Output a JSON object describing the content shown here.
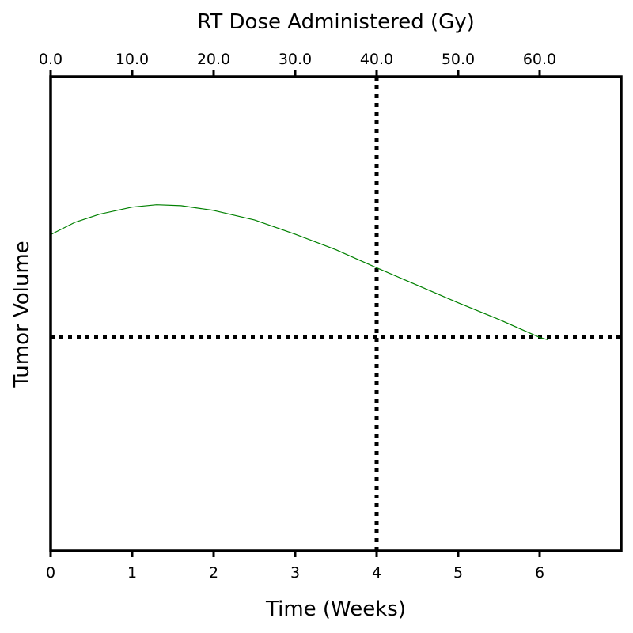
{
  "chart_data": {
    "type": "line",
    "title": "",
    "xlabel": "Time (Weeks)",
    "ylabel": "Tumor Volume",
    "x2label": "RT Dose Administered (Gy)",
    "xlim": [
      0,
      7
    ],
    "ylim": [
      0,
      1
    ],
    "x_ticks": [
      0,
      1,
      2,
      3,
      4,
      5,
      6
    ],
    "x_tick_labels": [
      "0",
      "1",
      "2",
      "3",
      "4",
      "5",
      "6"
    ],
    "x2_ticks": [
      0,
      10,
      20,
      30,
      40,
      50,
      60
    ],
    "x2_tick_labels": [
      "0.0",
      "10.0",
      "20.0",
      "30.0",
      "40.0",
      "50.0",
      "60.0"
    ],
    "y_ticks_shown": false,
    "grid": false,
    "legend": "none",
    "series": [
      {
        "color": "#008000",
        "x": [
          0,
          0.3,
          0.6,
          1.0,
          1.3,
          1.6,
          2.0,
          2.5,
          3.0,
          3.5,
          4.0,
          4.5,
          5.0,
          5.5,
          6.0,
          6.1
        ],
        "y": [
          0.667,
          0.693,
          0.71,
          0.725,
          0.73,
          0.728,
          0.718,
          0.698,
          0.668,
          0.635,
          0.597,
          0.56,
          0.523,
          0.488,
          0.45,
          0.445
        ]
      }
    ],
    "reference_lines": [
      {
        "orientation": "vertical",
        "x": 4,
        "style": "dotted",
        "color": "#000000"
      },
      {
        "orientation": "horizontal",
        "y": 0.45,
        "style": "dotted",
        "color": "#000000"
      }
    ]
  }
}
